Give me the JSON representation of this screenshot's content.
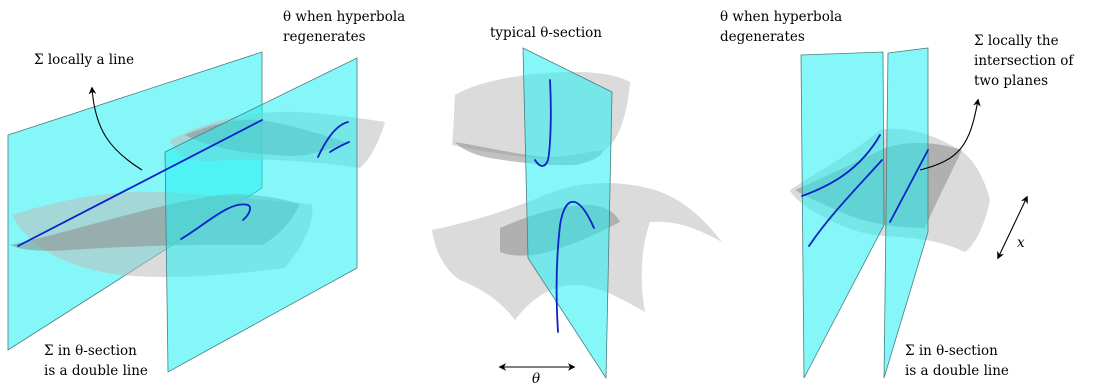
{
  "labels": {
    "left_top": "Σ locally a line",
    "left_bottom_1": "Σ in θ-section",
    "left_bottom_2": "is a double line",
    "regen_1": "θ when hyperbola",
    "regen_2": "regenerates",
    "typical": "typical θ-section",
    "theta_axis": "θ",
    "degen_1": "θ when hyperbola",
    "degen_2": "degenerates",
    "right_top_1": "Σ locally the",
    "right_top_2": "intersection of",
    "right_top_3": "two planes",
    "right_bottom_1": "Σ in θ-section",
    "right_bottom_2": "is a double line",
    "x_axis": "x"
  },
  "colors": {
    "plane": "#22f0f2",
    "surface": "#bdbdbd",
    "curve": "#0a23c8"
  }
}
